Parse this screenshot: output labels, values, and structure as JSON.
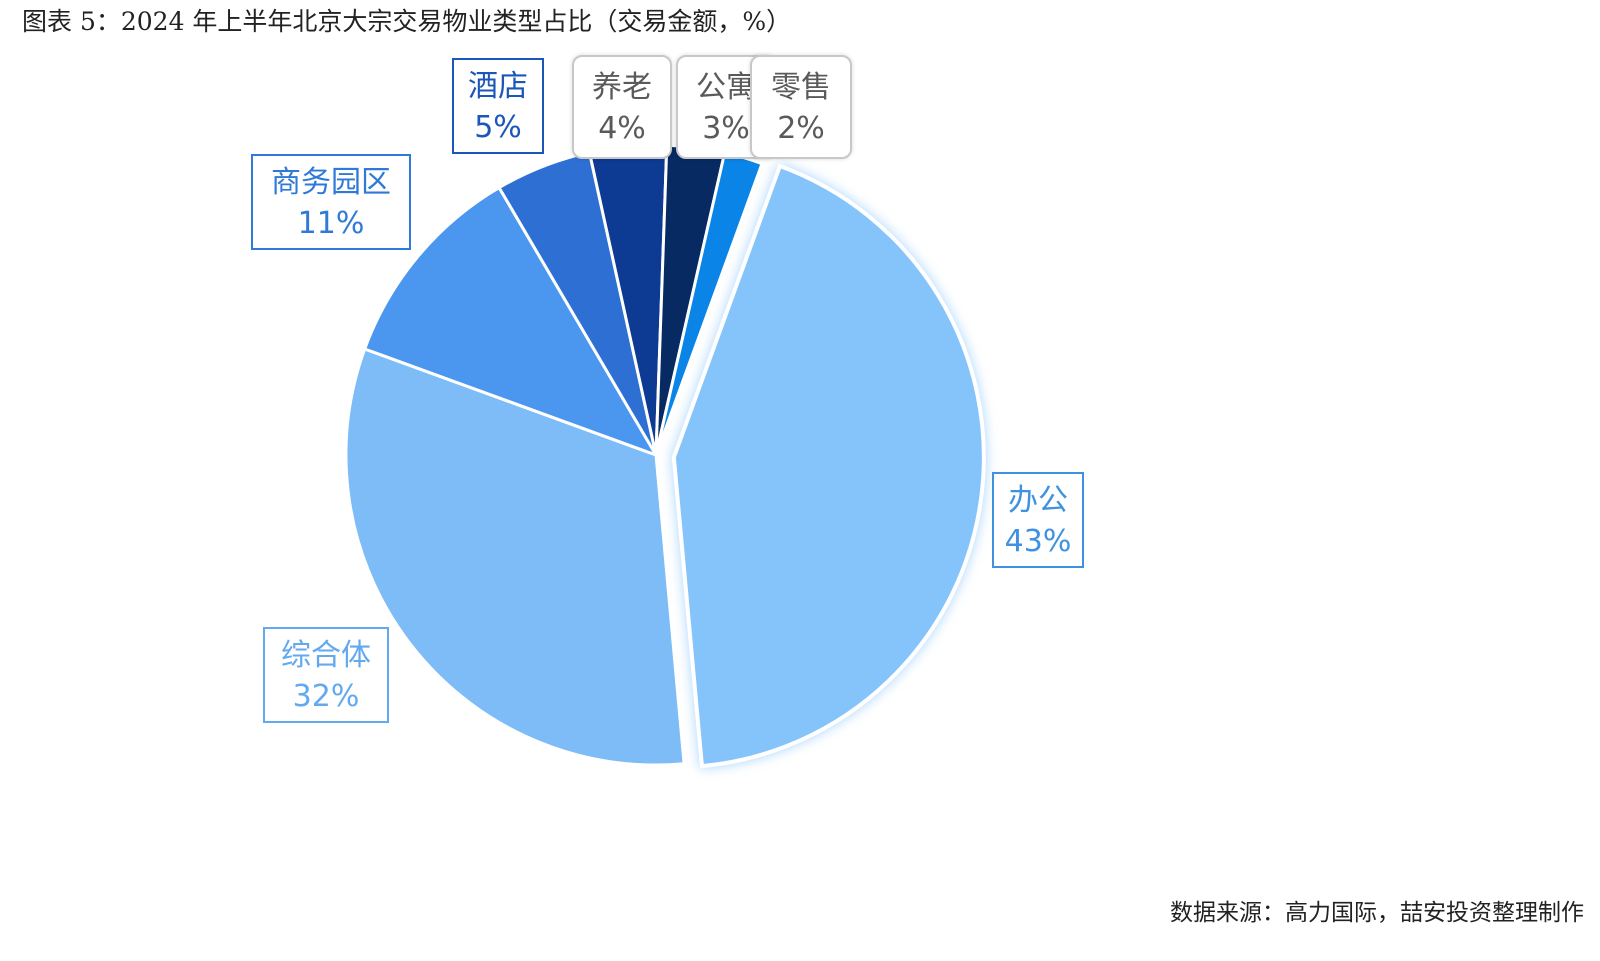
{
  "title": "图表 5：2024 年上半年北京大宗交易物业类型占比（交易金额，%）",
  "source": "数据来源：高力国际，喆安投资整理制作",
  "chart_data": {
    "type": "pie",
    "title": "图表 5：2024 年上半年北京大宗交易物业类型占比（交易金额，%）",
    "unit": "%",
    "slices": [
      {
        "name": "办公",
        "value": 43,
        "label": "43%",
        "color": "#85c4fa",
        "label_color": "#3f92df",
        "exploded": true
      },
      {
        "name": "综合体",
        "value": 32,
        "label": "32%",
        "color": "#7dbcf7",
        "label_color": "#63a9ee"
      },
      {
        "name": "商务园区",
        "value": 11,
        "label": "11%",
        "color": "#4b97f0",
        "label_color": "#2f79d9"
      },
      {
        "name": "酒店",
        "value": 5,
        "label": "5%",
        "color": "#2e6fd4",
        "label_color": "#1b57b8"
      },
      {
        "name": "养老",
        "value": 4,
        "label": "4%",
        "color": "#0d3a92",
        "label_color": "#5a5a5a",
        "label_style": "rounded"
      },
      {
        "name": "公寓",
        "value": 3,
        "label": "3%",
        "color": "#082a63",
        "label_color": "#5a5a5a",
        "label_style": "rounded"
      },
      {
        "name": "零售",
        "value": 2,
        "label": "2%",
        "color": "#0a84e6",
        "label_color": "#5a5a5a",
        "label_style": "rounded"
      }
    ]
  }
}
